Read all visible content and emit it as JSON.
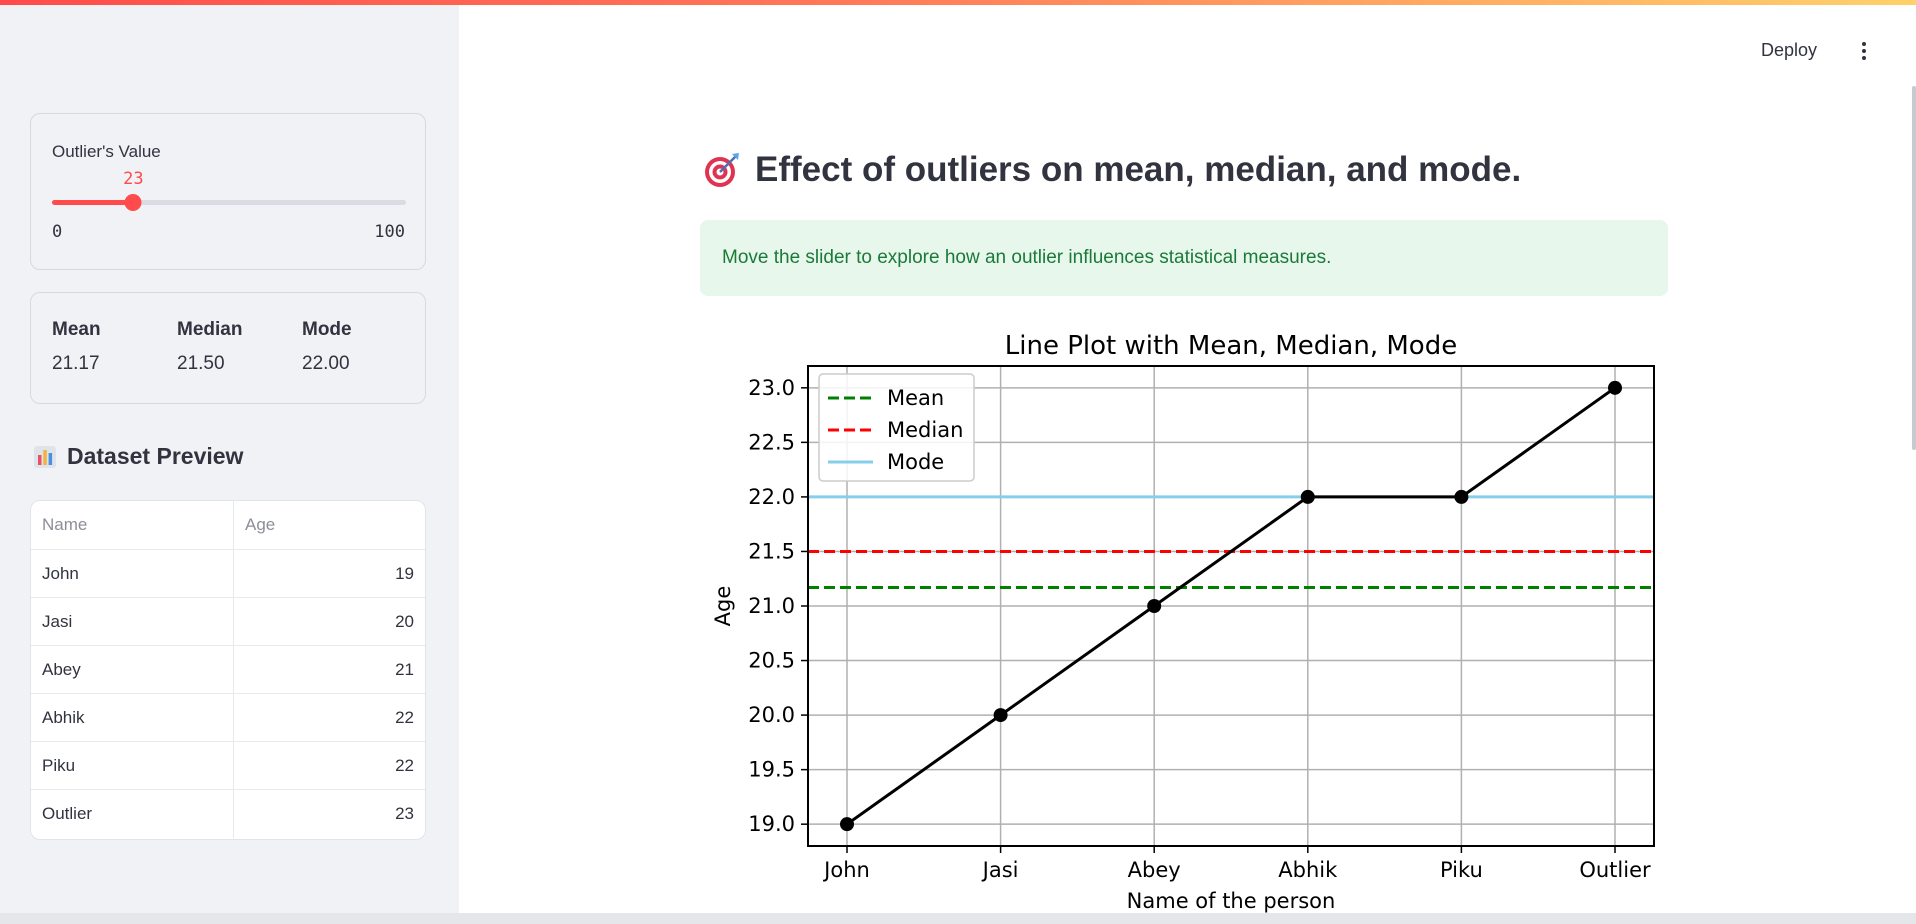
{
  "header": {
    "deploy_label": "Deploy"
  },
  "sidebar": {
    "slider": {
      "label": "Outlier's Value",
      "value": 23,
      "min": 0,
      "max": 100
    },
    "stats": [
      {
        "label": "Mean",
        "value": "21.17"
      },
      {
        "label": "Median",
        "value": "21.50"
      },
      {
        "label": "Mode",
        "value": "22.00"
      }
    ],
    "dataset": {
      "title": "Dataset Preview",
      "icon": "bar-chart-icon",
      "columns": [
        "Name",
        "Age"
      ],
      "rows": [
        {
          "name": "John",
          "age": "19"
        },
        {
          "name": "Jasi",
          "age": "20"
        },
        {
          "name": "Abey",
          "age": "21"
        },
        {
          "name": "Abhik",
          "age": "22"
        },
        {
          "name": "Piku",
          "age": "22"
        },
        {
          "name": "Outlier",
          "age": "23"
        }
      ]
    }
  },
  "main": {
    "title": "Effect of outliers on mean, median, and mode.",
    "title_icon": "target-icon",
    "info": "Move the slider to explore how an outlier influences statistical measures."
  },
  "chart_data": {
    "type": "line",
    "title": "Line Plot with Mean, Median, Mode",
    "xlabel": "Name of the person",
    "ylabel": "Age",
    "categories": [
      "John",
      "Jasi",
      "Abey",
      "Abhik",
      "Piku",
      "Outlier"
    ],
    "series": [
      {
        "values": [
          19,
          20,
          21,
          22,
          22,
          23
        ],
        "color": "#000000"
      }
    ],
    "reference_lines": [
      {
        "name": "Mean",
        "value": 21.17,
        "color": "#008000",
        "style": "dashed"
      },
      {
        "name": "Median",
        "value": 21.5,
        "color": "#ff0000",
        "style": "dashed"
      },
      {
        "name": "Mode",
        "value": 22.0,
        "color": "#87ceeb",
        "style": "solid"
      }
    ],
    "ylim": [
      18.8,
      23.2
    ],
    "yticks": [
      "19.0",
      "19.5",
      "20.0",
      "20.5",
      "21.0",
      "21.5",
      "22.0",
      "22.5",
      "23.0"
    ],
    "grid": true,
    "legend_position": "top-left"
  }
}
